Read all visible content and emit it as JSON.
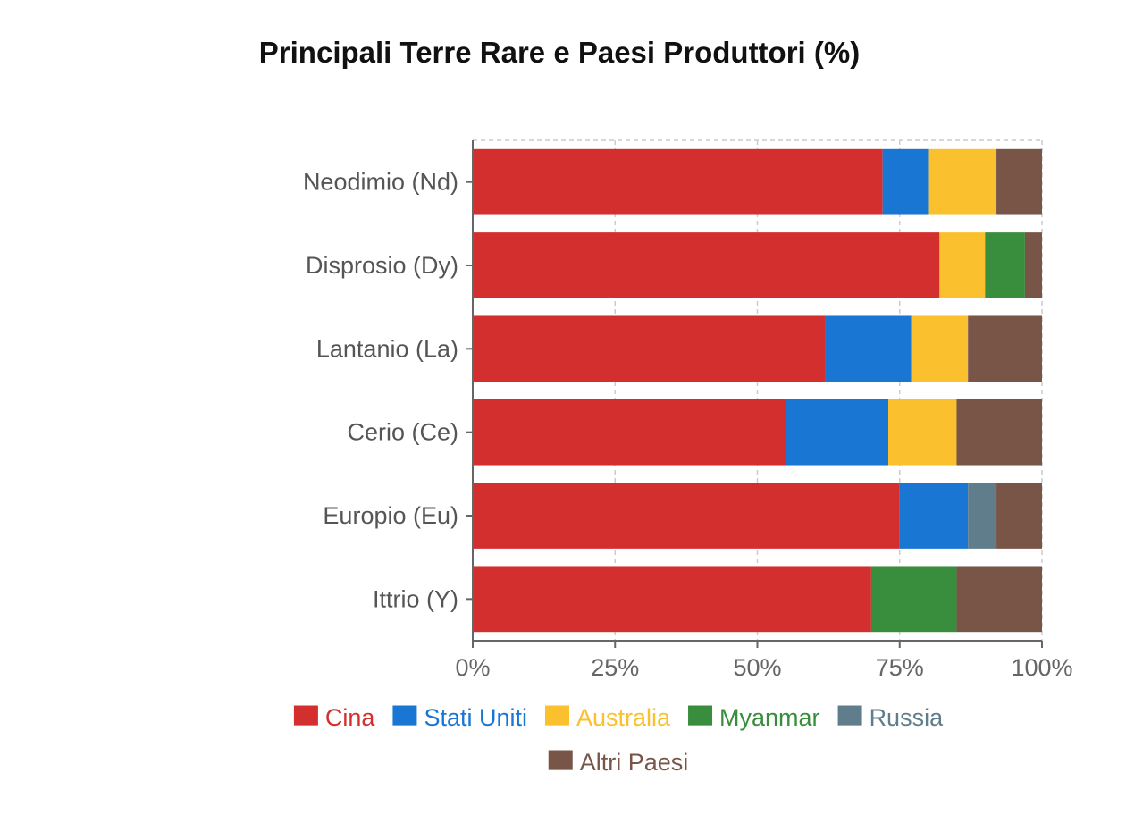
{
  "chart_data": {
    "type": "bar",
    "orientation": "horizontal",
    "stacked": true,
    "title": "Principali Terre Rare e Paesi Produttori (%)",
    "xlabel": "",
    "ylabel": "",
    "xlim": [
      0,
      100
    ],
    "x_ticks": [
      {
        "value": 0,
        "label": "0%"
      },
      {
        "value": 25,
        "label": "25%"
      },
      {
        "value": 50,
        "label": "50%"
      },
      {
        "value": 75,
        "label": "75%"
      },
      {
        "value": 100,
        "label": "100%"
      }
    ],
    "grid": true,
    "legend_position": "bottom",
    "categories": [
      "Neodimio (Nd)",
      "Disprosio (Dy)",
      "Lantanio (La)",
      "Cerio (Ce)",
      "Europio (Eu)",
      "Ittrio (Y)"
    ],
    "series": [
      {
        "name": "Cina",
        "color": "#d32f2f",
        "values": [
          72,
          82,
          62,
          55,
          75,
          70
        ]
      },
      {
        "name": "Stati Uniti",
        "color": "#1976d2",
        "values": [
          8,
          0,
          15,
          18,
          12,
          0
        ]
      },
      {
        "name": "Australia",
        "color": "#fbc02d",
        "values": [
          12,
          8,
          10,
          12,
          0,
          0
        ]
      },
      {
        "name": "Myanmar",
        "color": "#388e3c",
        "values": [
          0,
          7,
          0,
          0,
          0,
          15
        ]
      },
      {
        "name": "Russia",
        "color": "#607d8b",
        "values": [
          0,
          0,
          0,
          0,
          5,
          0
        ]
      },
      {
        "name": "Altri Paesi",
        "color": "#795548",
        "values": [
          8,
          3,
          13,
          15,
          8,
          15
        ]
      }
    ]
  }
}
